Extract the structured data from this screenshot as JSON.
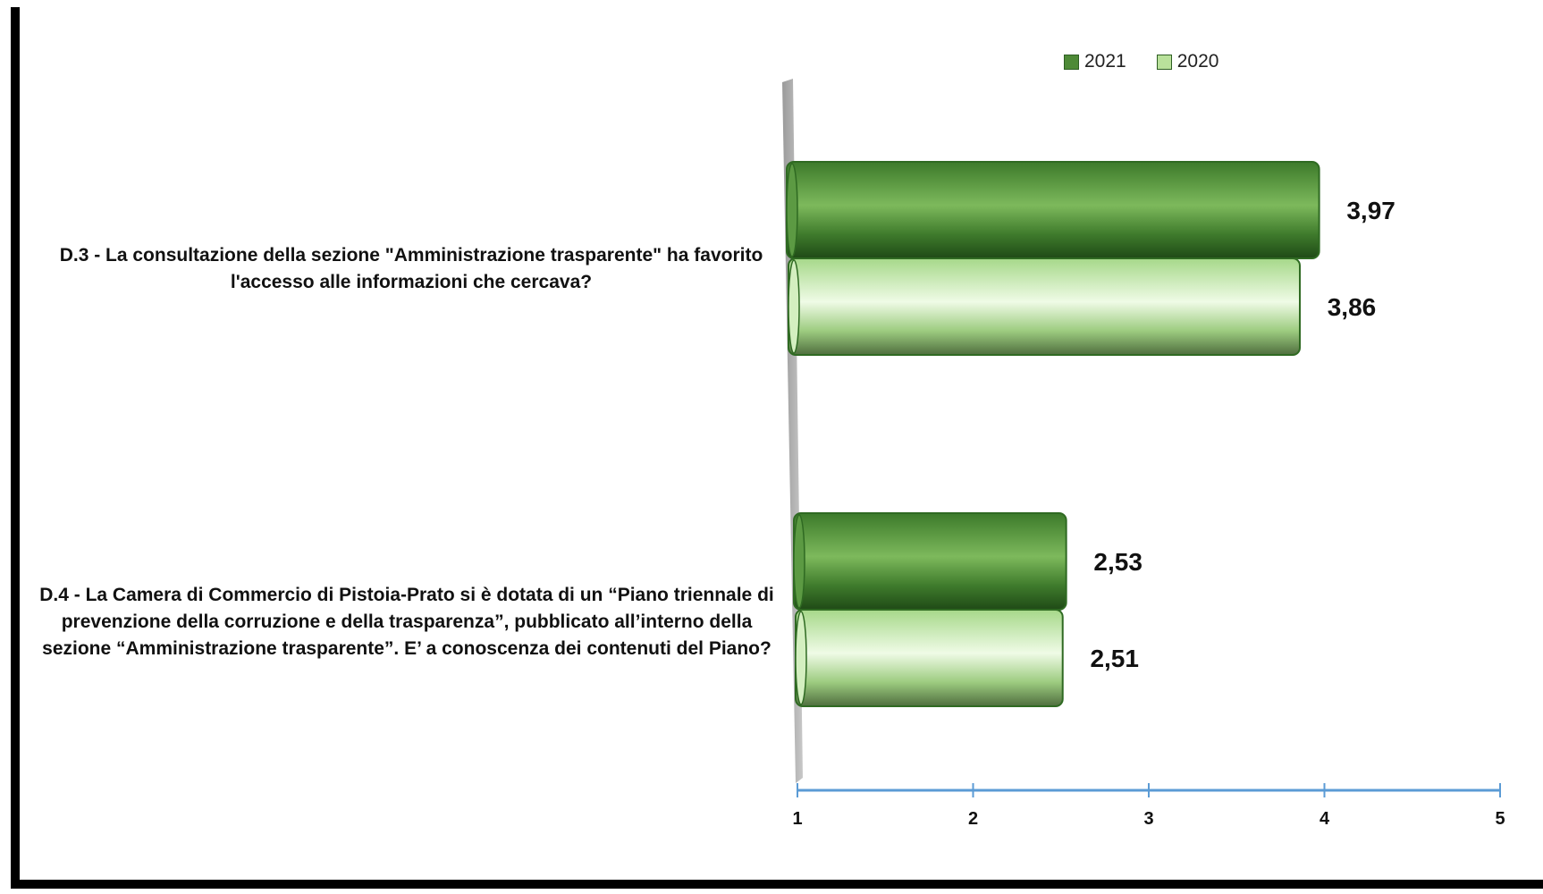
{
  "chart_data": {
    "type": "bar",
    "orientation": "horizontal",
    "categories": [
      "D.3 - La consultazione della sezione \"Amministrazione trasparente\" ha favorito l'accesso alle informazioni che cercava?",
      "D.4 - La Camera di Commercio di Pistoia-Prato si è dotata di un “Piano triennale di prevenzione della corruzione e della trasparenza”, pubblicato all’interno della sezione “Amministrazione trasparente”. E’ a conoscenza dei contenuti del Piano?"
    ],
    "category_lines": [
      [
        "D.3 - La consultazione della sezione \"Amministrazione trasparente\" ha favorito",
        "l'accesso alle informazioni che cercava?"
      ],
      [
        "D.4 - La Camera di Commercio di Pistoia-Prato si è dotata di un “Piano triennale di",
        "prevenzione della corruzione e della trasparenza”, pubblicato all’interno della",
        "sezione “Amministrazione trasparente”. E’ a conoscenza dei contenuti del Piano?"
      ]
    ],
    "series": [
      {
        "name": "2021",
        "values": [
          3.97,
          2.53
        ],
        "labels": [
          "3,97",
          "2,53"
        ],
        "color": "#4e8a37"
      },
      {
        "name": "2020",
        "values": [
          3.86,
          2.51
        ],
        "labels": [
          "3,86",
          "2,51"
        ],
        "color": "#b9e19b"
      }
    ],
    "xlim": [
      1,
      5
    ],
    "xticks": [
      "1",
      "2",
      "3",
      "4",
      "5"
    ],
    "title": "",
    "xlabel": "",
    "ylabel": "",
    "legend": "top-right",
    "grid": false
  },
  "colors": {
    "series_2021": "#4e8a37",
    "series_2020": "#b9e19b",
    "axis": "#5b9bd5",
    "frame": "#000000"
  }
}
